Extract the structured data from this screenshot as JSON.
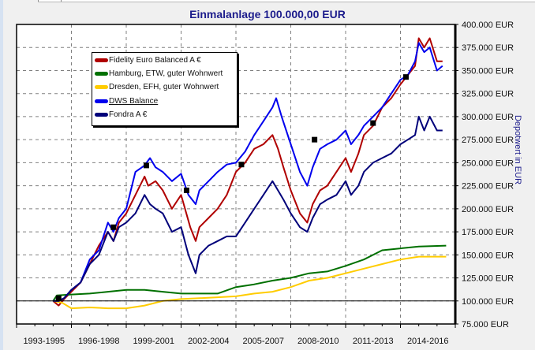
{
  "chart_data": {
    "type": "line",
    "title": "Einmalanlage 100.000,00 EUR",
    "xlabel": "",
    "ylabel": "Depotwert in EUR",
    "ylim": [
      75000,
      400000
    ],
    "yticks": [
      "400.000 EUR",
      "375.000 EUR",
      "350.000 EUR",
      "325.000 EUR",
      "300.000 EUR",
      "275.000 EUR",
      "250.000 EUR",
      "225.000 EUR",
      "200.000 EUR",
      "175.000 EUR",
      "150.000 EUR",
      "125.000 EUR",
      "100.000 EUR",
      "75.000 EUR"
    ],
    "ytick_values": [
      400000,
      375000,
      350000,
      325000,
      300000,
      275000,
      250000,
      225000,
      200000,
      175000,
      150000,
      125000,
      100000,
      75000
    ],
    "categories": [
      "1993-1995",
      "1996-1998",
      "1999-2001",
      "2002-2004",
      "2005-2007",
      "2008-2010",
      "2011-2013",
      "2014-2016"
    ],
    "xlim": [
      1993,
      2017
    ],
    "grid": true,
    "legend_position": "top-left",
    "baseline": 100000,
    "series": [
      {
        "name": "Fidelity Euro Balanced A €",
        "color": "#b00000",
        "underline": false,
        "x": [
          1995,
          1995.3,
          1995.6,
          1996,
          1996.5,
          1997,
          1997.5,
          1998,
          1998.3,
          1998.6,
          1999,
          1999.5,
          2000,
          2000.2,
          2000.6,
          2001,
          2001.5,
          2002,
          2002.5,
          2002.8,
          2003,
          2003.5,
          2004,
          2004.5,
          2005,
          2005.5,
          2006,
          2006.5,
          2007,
          2007.3,
          2007.6,
          2008,
          2008.5,
          2008.9,
          2009.2,
          2009.6,
          2010,
          2010.5,
          2011,
          2011.3,
          2011.7,
          2012,
          2012.5,
          2013,
          2013.5,
          2014,
          2014.4,
          2014.8,
          2015,
          2015.3,
          2015.6,
          2016,
          2016.3
        ],
        "y": [
          100000,
          95000,
          102000,
          110000,
          120000,
          140000,
          160000,
          175000,
          165000,
          185000,
          195000,
          215000,
          235000,
          225000,
          230000,
          220000,
          200000,
          215000,
          180000,
          165000,
          180000,
          190000,
          200000,
          215000,
          240000,
          250000,
          265000,
          270000,
          280000,
          265000,
          245000,
          220000,
          195000,
          185000,
          205000,
          220000,
          225000,
          240000,
          255000,
          240000,
          260000,
          280000,
          290000,
          310000,
          320000,
          335000,
          345000,
          355000,
          385000,
          375000,
          385000,
          360000,
          360000
        ]
      },
      {
        "name": "Hamburg, ETW, guter Wohnwert",
        "color": "#007000",
        "underline": false,
        "x": [
          1995,
          1995.2,
          1996,
          1997,
          1998,
          1999,
          2000,
          2001,
          2002,
          2003,
          2004,
          2005,
          2006,
          2007,
          2008,
          2009,
          2010,
          2011,
          2012,
          2013,
          2014,
          2015,
          2016.5
        ],
        "y": [
          100000,
          106000,
          107000,
          108000,
          110000,
          112000,
          112000,
          110000,
          108000,
          108000,
          108000,
          115000,
          118000,
          122000,
          125000,
          130000,
          132000,
          138000,
          145000,
          155000,
          157000,
          159000,
          160000
        ]
      },
      {
        "name": "Dresden, EFH, guter Wohnwert",
        "color": "#ffcc00",
        "underline": false,
        "x": [
          1995,
          1995.5,
          1996,
          1997,
          1998,
          1999,
          2000,
          2001,
          2002,
          2003,
          2004,
          2005,
          2006,
          2007,
          2008,
          2009,
          2010,
          2011,
          2012,
          2013,
          2014,
          2015,
          2016.5
        ],
        "y": [
          100000,
          98000,
          92000,
          93000,
          92000,
          92000,
          95000,
          100000,
          102000,
          103000,
          104000,
          105000,
          108000,
          110000,
          115000,
          122000,
          125000,
          130000,
          135000,
          140000,
          145000,
          148000,
          148000
        ]
      },
      {
        "name": "DWS Balance",
        "color": "#0000ee",
        "underline": true,
        "x": [
          1995,
          1995.3,
          1995.6,
          1996,
          1996.5,
          1997,
          1997.5,
          1998,
          1998.3,
          1998.6,
          1999,
          1999.5,
          2000,
          2000.3,
          2000.6,
          2001,
          2001.5,
          2002,
          2002.4,
          2002.8,
          2003,
          2003.5,
          2004,
          2004.5,
          2005,
          2005.5,
          2006,
          2006.5,
          2007,
          2007.2,
          2007.5,
          2008,
          2008.5,
          2008.9,
          2009.2,
          2009.6,
          2010,
          2010.5,
          2011,
          2011.3,
          2011.7,
          2012,
          2012.5,
          2013,
          2013.5,
          2014,
          2014.4,
          2014.8,
          2015,
          2015.3,
          2015.6,
          2016,
          2016.3
        ],
        "y": [
          100000,
          100000,
          103000,
          112000,
          120000,
          145000,
          155000,
          185000,
          175000,
          190000,
          200000,
          240000,
          247000,
          255000,
          245000,
          240000,
          230000,
          238000,
          215000,
          205000,
          220000,
          230000,
          240000,
          248000,
          250000,
          262000,
          280000,
          295000,
          310000,
          320000,
          300000,
          270000,
          240000,
          225000,
          245000,
          265000,
          270000,
          275000,
          285000,
          270000,
          280000,
          290000,
          300000,
          310000,
          325000,
          340000,
          345000,
          360000,
          380000,
          370000,
          375000,
          350000,
          355000
        ]
      },
      {
        "name": "Fondra A €",
        "color": "#00007a",
        "underline": false,
        "x": [
          1995,
          1995.3,
          1995.6,
          1996,
          1996.5,
          1997,
          1997.5,
          1998,
          1998.3,
          1998.6,
          1999,
          1999.5,
          2000,
          2000.3,
          2000.6,
          2001,
          2001.5,
          2002,
          2002.4,
          2002.8,
          2003,
          2003.5,
          2004,
          2004.5,
          2005,
          2005.5,
          2006,
          2006.5,
          2007,
          2007.3,
          2007.6,
          2008,
          2008.5,
          2008.9,
          2009.2,
          2009.6,
          2010,
          2010.5,
          2011,
          2011.3,
          2011.7,
          2012,
          2012.5,
          2013,
          2013.5,
          2014,
          2014.4,
          2014.8,
          2015,
          2015.3,
          2015.6,
          2016,
          2016.3
        ],
        "y": [
          100000,
          100000,
          103000,
          112000,
          120000,
          140000,
          150000,
          175000,
          165000,
          180000,
          185000,
          195000,
          215000,
          205000,
          200000,
          195000,
          175000,
          180000,
          150000,
          130000,
          150000,
          160000,
          165000,
          170000,
          170000,
          185000,
          200000,
          215000,
          230000,
          220000,
          210000,
          195000,
          180000,
          175000,
          190000,
          205000,
          210000,
          215000,
          230000,
          215000,
          225000,
          240000,
          250000,
          255000,
          260000,
          270000,
          275000,
          280000,
          300000,
          285000,
          300000,
          285000,
          285000
        ]
      }
    ],
    "markers": [
      {
        "x": 1995.3,
        "y": 103000
      },
      {
        "x": 1998.3,
        "y": 180000
      },
      {
        "x": 2000.1,
        "y": 247000
      },
      {
        "x": 2002.3,
        "y": 220000
      },
      {
        "x": 2005.3,
        "y": 248000
      },
      {
        "x": 2009.3,
        "y": 275000
      },
      {
        "x": 2012.5,
        "y": 293000
      },
      {
        "x": 2014.3,
        "y": 343000
      }
    ]
  }
}
